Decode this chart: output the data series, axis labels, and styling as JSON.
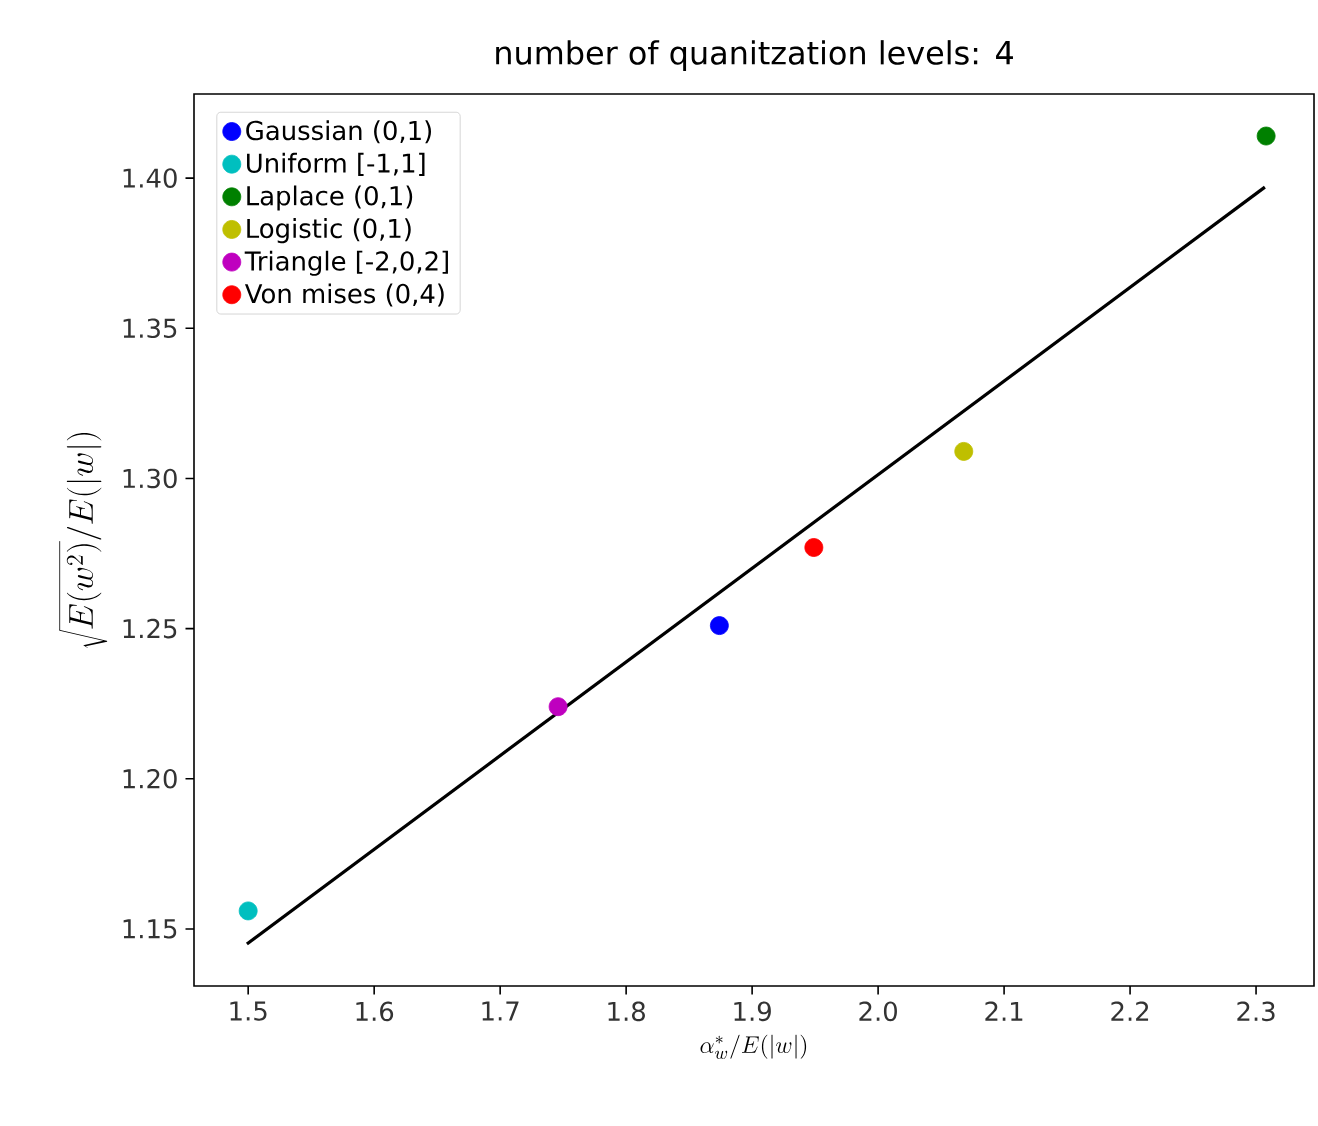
{
  "chart_data": {
    "type": "scatter",
    "title": "number of quanitzation levels: 4",
    "xlabel": "\\alpha_w^*/E(|w|)",
    "ylabel": "\\sqrt{E(w^2)}/E(|w|)",
    "xlim": [
      1.457,
      2.346
    ],
    "ylim": [
      1.131,
      1.428
    ],
    "xticks": [
      1.5,
      1.6,
      1.7,
      1.8,
      1.9,
      {
        "value": 2.0,
        "label": "2.0"
      },
      2.1,
      2.2,
      2.3
    ],
    "yticks": [
      1.15,
      {
        "value": 1.2,
        "label": "1.20"
      },
      1.25,
      {
        "value": 1.3,
        "label": "1.30"
      },
      1.35,
      {
        "value": 1.4,
        "label": "1.40"
      }
    ],
    "legend": "top left",
    "grid": false,
    "series": [
      {
        "name": "Gaussian (0,1)",
        "marker": "circle",
        "color": "#0000ff",
        "x": [
          1.874
        ],
        "values": [
          1.251
        ]
      },
      {
        "name": "Uniform [-1,1]",
        "marker": "circle",
        "color": "#00bfbf",
        "x": [
          1.5
        ],
        "values": [
          1.156
        ]
      },
      {
        "name": "Laplace (0,1)",
        "marker": "circle",
        "color": "#008000",
        "x": [
          2.308
        ],
        "values": [
          1.414
        ]
      },
      {
        "name": "Logistic (0,1)",
        "marker": "circle",
        "color": "#bfbf00",
        "x": [
          2.068
        ],
        "values": [
          1.309
        ]
      },
      {
        "name": "Triangle [-2,0,2]",
        "marker": "circle",
        "color": "#bf00bf",
        "x": [
          1.746
        ],
        "values": [
          1.224
        ]
      },
      {
        "name": "Von mises (0,4)",
        "marker": "circle",
        "color": "#ff0000",
        "x": [
          1.949
        ],
        "values": [
          1.277
        ]
      },
      {
        "type": "line",
        "marker": "none",
        "color": "#000000",
        "x": [
          1.499,
          2.307
        ],
        "values": [
          1.145,
          1.397
        ]
      }
    ]
  }
}
